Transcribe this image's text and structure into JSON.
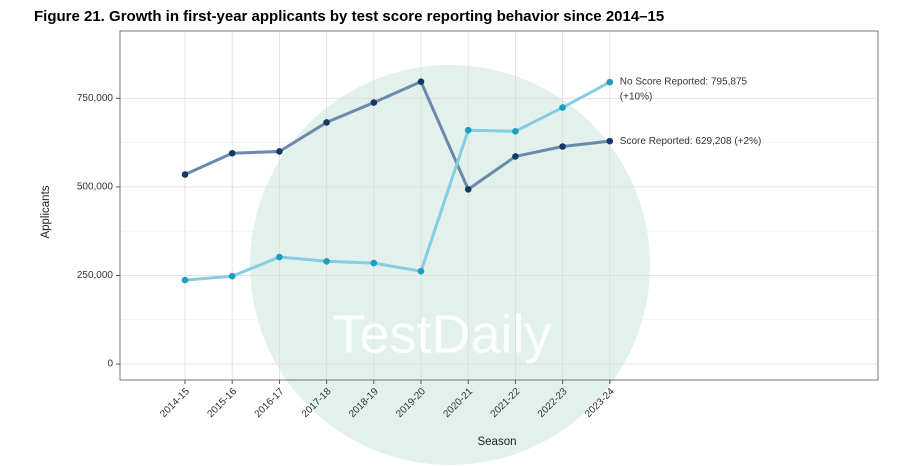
{
  "chart_data": {
    "type": "line",
    "title": "Figure 21. Growth in first-year applicants by test score reporting behavior since 2014–15",
    "watermark": "TestDaily",
    "x_label": "Season",
    "y_label": "Applicants",
    "categories": [
      "2014-15",
      "2015-16",
      "2016-17",
      "2017-18",
      "2018-19",
      "2019-20",
      "2020-21",
      "2021-22",
      "2022-23",
      "2023-24"
    ],
    "series": [
      {
        "name": "Score Reported",
        "color": "#6a8aab",
        "point_color": "#143a63",
        "values": [
          535000,
          595000,
          600000,
          682000,
          738000,
          797000,
          493000,
          586000,
          614000,
          629208
        ],
        "annotation": [
          "Score Reported: 629,208 (+2%)"
        ]
      },
      {
        "name": "No Score Reported",
        "color": "#84cde2",
        "point_color": "#1d9cc4",
        "values": [
          237000,
          248000,
          302000,
          290000,
          285000,
          262000,
          660000,
          657000,
          724000,
          795875
        ],
        "annotation": [
          "No Score Reported: 795,875",
          "(+10%)"
        ]
      }
    ],
    "ylim": [
      -45000,
      940000
    ],
    "yticks": [
      0,
      {
        "value": 250000,
        "label": "250,000"
      },
      {
        "value": 500000,
        "label": "500,000"
      },
      {
        "value": 750000,
        "label": "750,000"
      }
    ],
    "grid": true
  }
}
